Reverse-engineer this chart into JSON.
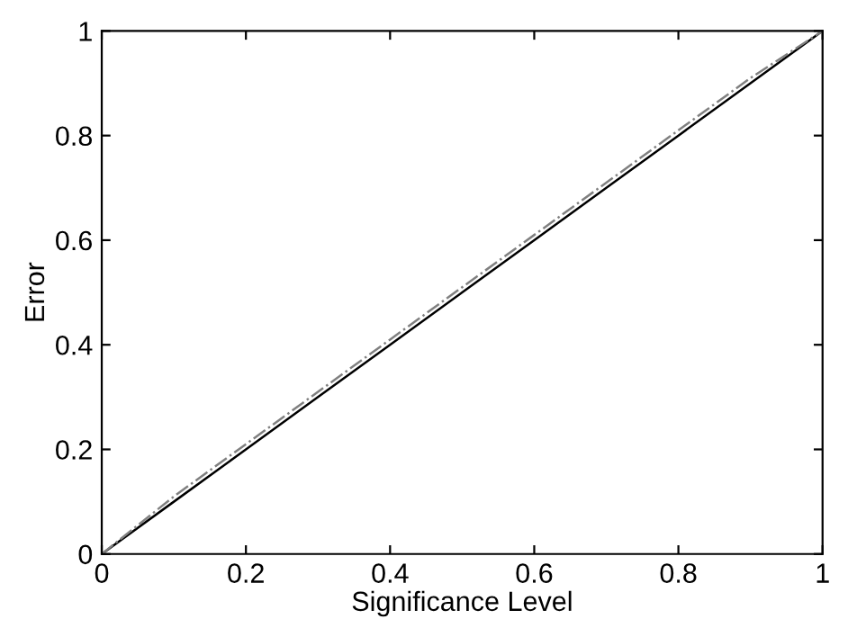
{
  "chart_data": {
    "type": "line",
    "xlabel": "Significance Level",
    "ylabel": "Error",
    "x": [
      0,
      0.1,
      0.2,
      0.3,
      0.4,
      0.5,
      0.6,
      0.7,
      0.8,
      0.9,
      1
    ],
    "series": [
      {
        "color": "#000000",
        "line_style": "solid",
        "values": [
          0,
          0.1,
          0.2,
          0.3,
          0.4,
          0.5,
          0.6,
          0.7,
          0.8,
          0.9,
          1
        ]
      },
      {
        "color": "#808080",
        "line_style": "dashdot",
        "values": [
          0,
          0.11,
          0.21,
          0.31,
          0.41,
          0.51,
          0.61,
          0.71,
          0.81,
          0.91,
          1
        ]
      }
    ],
    "xlim": [
      0,
      1
    ],
    "ylim": [
      0,
      1
    ],
    "xticks": [
      0,
      0.2,
      0.4,
      0.6,
      0.8,
      1
    ],
    "yticks": [
      0,
      0.2,
      0.4,
      0.6,
      0.8,
      1
    ],
    "grid": false,
    "legend": false,
    "marker": "none"
  }
}
